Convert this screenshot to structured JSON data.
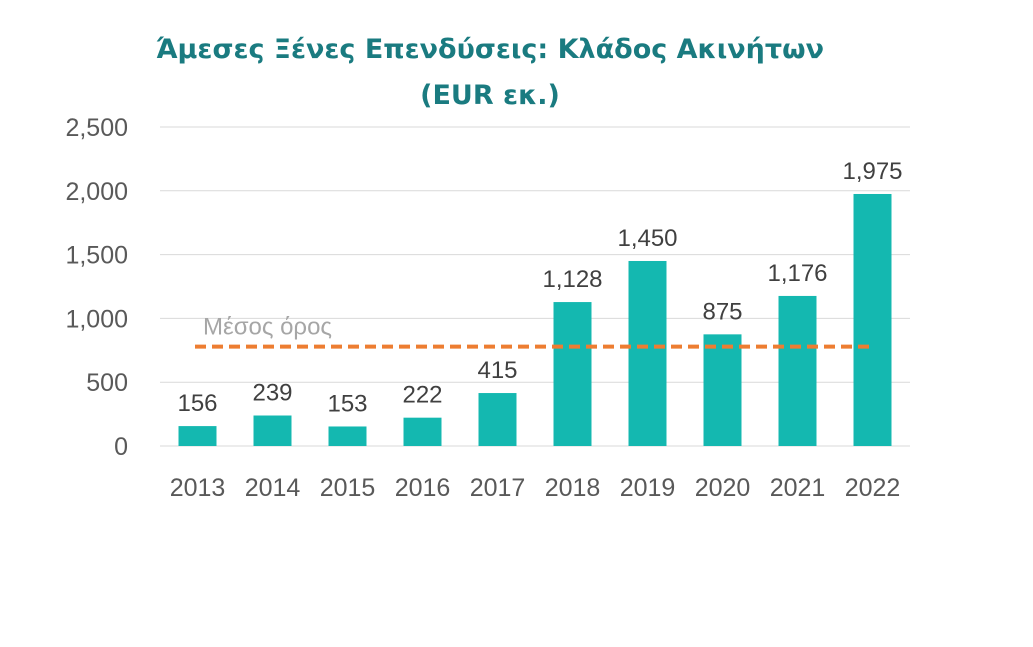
{
  "chart_data": {
    "type": "bar",
    "title": [
      "Άμεσες Ξένες Επενδύσεις: Κλάδος Ακινήτων",
      "(EUR εκ.)"
    ],
    "xlabel": "",
    "ylabel": "",
    "categories": [
      "2013",
      "2014",
      "2015",
      "2016",
      "2017",
      "2018",
      "2019",
      "2020",
      "2021",
      "2022"
    ],
    "values": [
      156,
      239,
      153,
      222,
      415,
      1128,
      1450,
      875,
      1176,
      1975
    ],
    "data_labels": [
      "156",
      "239",
      "153",
      "222",
      "415",
      "1,128",
      "1,450",
      "875",
      "1,176",
      "1,975"
    ],
    "ylim": [
      0,
      2500
    ],
    "yticks": [
      0,
      500,
      1000,
      1500,
      2000,
      2500
    ],
    "ytick_labels": [
      "0",
      "500",
      "1,000",
      "1,500",
      "2,000",
      "2,500"
    ],
    "grid": true,
    "reference_line": {
      "label": "Μέσος όρος",
      "value": 779,
      "style": "dashed",
      "color": "#ed7d31"
    },
    "colors": {
      "bar": "#14b8b0",
      "title": "#1a7b80",
      "grid": "#d9d9d9"
    }
  }
}
